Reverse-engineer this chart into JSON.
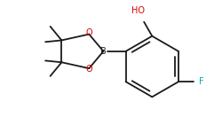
{
  "bg_color": "#ffffff",
  "bond_color": "#1a1a1a",
  "bond_width": 1.3,
  "atom_colors": {
    "O": "#dd0000",
    "B": "#1a1a1a",
    "F": "#00aaaa",
    "HO": "#dd0000",
    "C": "#1a1a1a"
  },
  "font_size": 7.0
}
